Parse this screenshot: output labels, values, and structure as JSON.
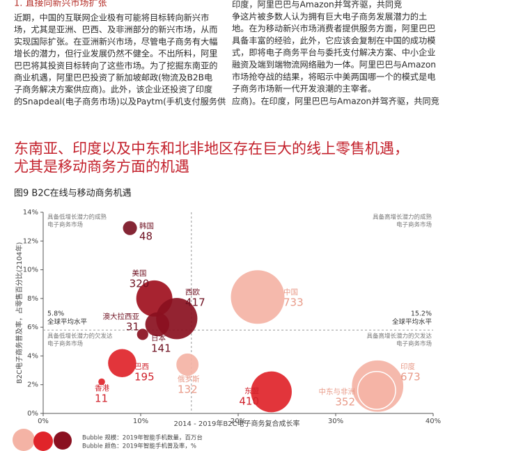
{
  "left_column": {
    "heading": "1. 直接向新兴市场扩张",
    "lines": [
      "近期，中国的互联网企业极有可能将目标转向新兴市",
      "场，尤其是亚洲、巴西、及非洲部分的新兴市场，从而",
      "实现国际扩张。在亚洲新兴市场，尽管电子商务有大幅",
      "增长的潜力，但行业发展仍然不健全。不出所料，阿里",
      "巴巴将其投资目标转向了这些市场。为了挖掘东南亚的",
      "商业机遇，阿里巴巴投资了新加坡邮政(物流及B2B电",
      "子商务解决方案供应商)。此外，该企业还投资了印度",
      "的Snapdeal(电子商务市场)以及Paytm(手机支付服务供"
    ]
  },
  "right_column": {
    "lines": [
      "印度，阿里巴巴与Amazon并驾齐驱，共同竞",
      "争这片被多数人认为拥有巨大电子商务发展潜力的土",
      "地。在为移动新兴市场消费者提供服务方面，阿里巴巴",
      "具备丰富的经验，此外，它应该会复制在中国的成功模",
      "式，即将电子商务平台与委托支付解决方案、中小企业",
      "融资及端到端物流网络融为一体。阿里巴巴与Amazon",
      "市场抢夺战的结果，将昭示中美两国哪一个的模式是电",
      "子商务市场新一代开发浪潮的主宰者。",
      "应商)。在印度，阿里巴巴与Amazon并驾齐驱，共同竞"
    ]
  },
  "headline": [
    "东南亚、印度以及中东和北非地区存在巨大的线上零售机遇，",
    "尤其是移动商务方面的机遇"
  ],
  "figure_title": "图9 B2C在线与移动商务机遇",
  "chart_data": {
    "type": "bubble",
    "x_label": "2014 - 2019年B2C电子商务复合成长率",
    "y_label": "B2C电子商务普及率，占零售百分比(2104年)",
    "xlim": [
      0,
      40
    ],
    "ylim": [
      0,
      14
    ],
    "xticks": [
      {
        "value": 0,
        "label": "0%"
      },
      {
        "value": 10,
        "label": "10%"
      },
      {
        "value": 20,
        "label": "20%"
      },
      {
        "value": 30,
        "label": "30%"
      },
      {
        "value": 40,
        "label": "40%"
      }
    ],
    "yticks": [
      {
        "value": 0,
        "label": "0%"
      },
      {
        "value": 2,
        "label": "2%"
      },
      {
        "value": 4,
        "label": "4%"
      },
      {
        "value": 6,
        "label": "6%"
      },
      {
        "value": 8,
        "label": "8%"
      },
      {
        "value": 10,
        "label": "10%"
      },
      {
        "value": 12,
        "label": "12%"
      },
      {
        "value": 14,
        "label": "14%"
      }
    ],
    "ref_lines": [
      {
        "axis": "y",
        "value": 5.8,
        "label": "5.8%",
        "caption": "全球平均水平"
      },
      {
        "axis": "x",
        "value": 15.2,
        "label": "15.2%",
        "caption": "全球平均水平"
      }
    ],
    "quadrant_labels": [
      [
        "具备低增长潜力的成熟",
        "电子商务市场"
      ],
      [
        "具备高增长潜力的成熟",
        "电子商务市场"
      ],
      [
        "具备低增长潜力的欠发达",
        "电子商务市场"
      ],
      [
        "具备高增长潜力的欠发达",
        "电子商务市场"
      ]
    ],
    "points": [
      {
        "name": "中国",
        "x": 22.0,
        "y": 8.1,
        "size": 733,
        "color": "#f4b3a5"
      },
      {
        "name": "印度",
        "x": 34.3,
        "y": 1.9,
        "size": 673,
        "color": "#f4b3a5"
      },
      {
        "name": "中东与非洲",
        "x": 34.2,
        "y": 1.6,
        "size": 352,
        "color": "#f4b3a5"
      },
      {
        "name": "俄罗斯",
        "x": 14.8,
        "y": 3.4,
        "size": 132,
        "color": "#f4b3a5"
      },
      {
        "name": "东盟",
        "x": 23.4,
        "y": 1.5,
        "size": 410,
        "color": "#e0242a"
      },
      {
        "name": "巴西",
        "x": 8.1,
        "y": 3.5,
        "size": 195,
        "color": "#e0242a"
      },
      {
        "name": "香港",
        "x": 6.0,
        "y": 2.2,
        "size": 11,
        "color": "#e0242a"
      },
      {
        "name": "美国",
        "x": 11.4,
        "y": 8.0,
        "size": 320,
        "color": "#a0101e"
      },
      {
        "name": "西欧",
        "x": 13.7,
        "y": 6.6,
        "size": 417,
        "color": "#8a1020"
      },
      {
        "name": "日本",
        "x": 11.7,
        "y": 6.2,
        "size": 141,
        "color": "#8a1020"
      },
      {
        "name": "澳大拉西亚",
        "x": 10.2,
        "y": 5.5,
        "size": 31,
        "color": "#8a1020"
      },
      {
        "name": "韩国",
        "x": 8.9,
        "y": 12.9,
        "size": 48,
        "color": "#7b1324"
      }
    ]
  },
  "footnote": [
    "Bubble 规模：2019年智能手机数量，百万台",
    "Bubble 颜色：2019年智能手机普及率，%"
  ]
}
